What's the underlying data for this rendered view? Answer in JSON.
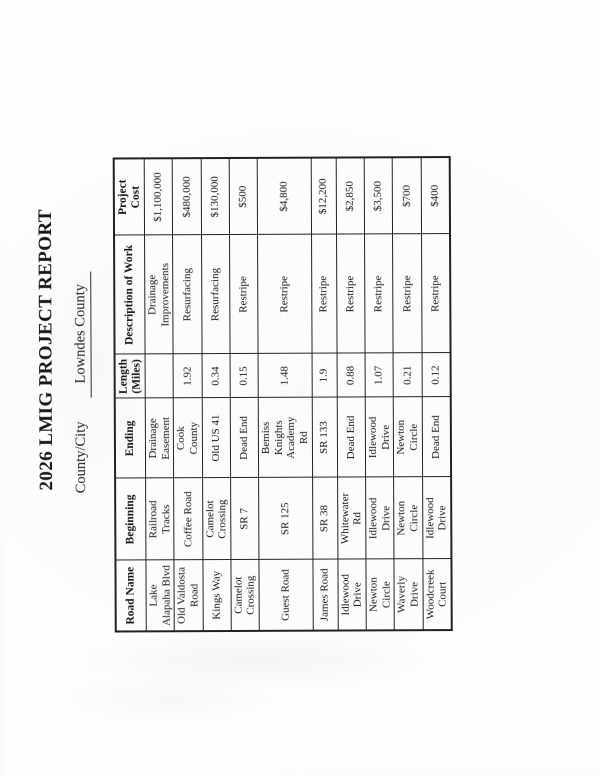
{
  "page": {
    "title": "2026 LMIG PROJECT REPORT",
    "county_city_label": "County/City",
    "county_city_value": "Lowndes County"
  },
  "table": {
    "columns": [
      "Road Name",
      "Beginning",
      "Ending",
      "Length\n(Miles)",
      "Description of Work",
      "Project\nCost"
    ],
    "rows": [
      [
        "Lake\nAlapaha Blvd",
        "Railroad\nTracks",
        "Drainage\nEasement",
        "",
        "Drainage\nImprovements",
        "$1,100,000"
      ],
      [
        "Old Valdosta\nRoad",
        "Coffee Road",
        "Cook\nCounty",
        "1.92",
        "Resurfacing",
        "$480,000"
      ],
      [
        "Kings Way",
        "Camelot\nCrossing",
        "Old US 41",
        "0.34",
        "Resurfacing",
        "$130,000"
      ],
      [
        "Camelot\nCrossing",
        "SR 7",
        "Dead End",
        "0.15",
        "Restripe",
        "$500"
      ],
      [
        "Guest Road",
        "SR 125",
        "Bemiss\nKnights\nAcademy\nRd",
        "1.48",
        "Restripe",
        "$4,800"
      ],
      [
        "James Road",
        "SR 38",
        "SR 133",
        "1.9",
        "Restripe",
        "$12,200"
      ],
      [
        "Idlewood\nDrive",
        "Whitewater\nRd",
        "Dead End",
        "0.88",
        "Restripe",
        "$2,850"
      ],
      [
        "Newton\nCircle",
        "Idlewood\nDrive",
        "Idlewood\nDrive",
        "1.07",
        "Restripe",
        "$3,500"
      ],
      [
        "Waverly\nDrive",
        "Newton\nCircle",
        "Newton\nCircle",
        "0.21",
        "Restripe",
        "$700"
      ],
      [
        "Woodcreek\nCourt",
        "Idlewood\nDrive",
        "Dead End",
        "0.12",
        "Restripe",
        "$400"
      ]
    ]
  },
  "colors": {
    "paper": "#fbfbfa",
    "ink": "#1a1a1a",
    "table_border": "#212121"
  }
}
